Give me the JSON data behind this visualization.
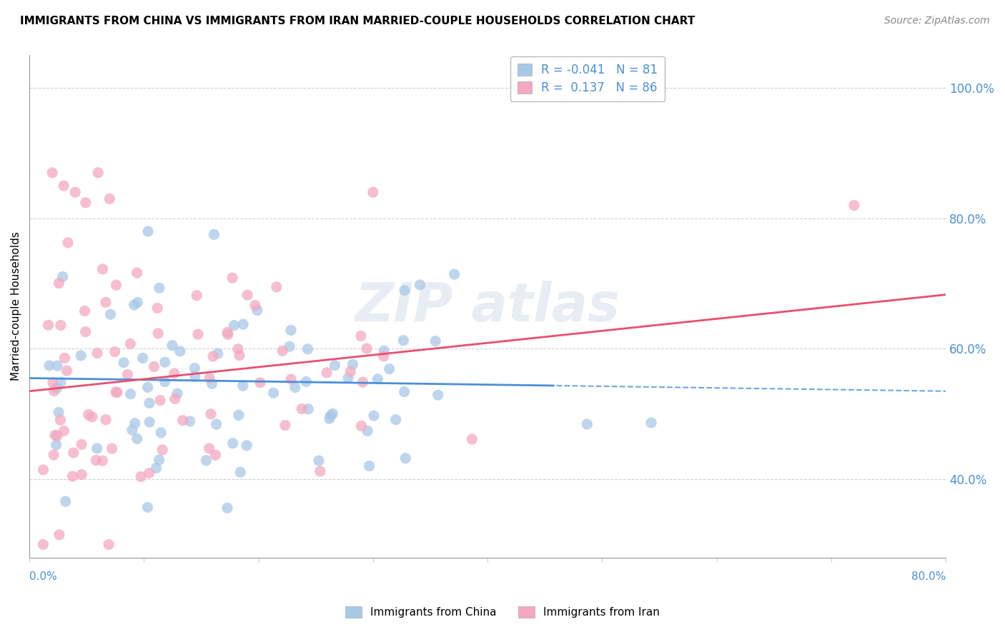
{
  "title": "IMMIGRANTS FROM CHINA VS IMMIGRANTS FROM IRAN MARRIED-COUPLE HOUSEHOLDS CORRELATION CHART",
  "source": "Source: ZipAtlas.com",
  "ylabel": "Married-couple Households",
  "legend_china": "Immigrants from China",
  "legend_iran": "Immigrants from Iran",
  "R_china": -0.041,
  "N_china": 81,
  "R_iran": 0.137,
  "N_iran": 86,
  "color_china": "#a8c8e8",
  "color_iran": "#f4a8c0",
  "line_color_china": "#4a90d9",
  "line_color_iran": "#e85070",
  "tick_color": "#4a90d9",
  "grid_color": "#cccccc",
  "xlim": [
    0.0,
    0.8
  ],
  "ylim": [
    0.28,
    1.05
  ],
  "yticks": [
    0.4,
    0.6,
    0.8,
    1.0
  ],
  "ytick_labels": [
    "40.0%",
    "60.0%",
    "80.0%",
    "100.0%"
  ],
  "xticks": [
    0.0,
    0.1,
    0.2,
    0.3,
    0.4,
    0.5,
    0.6,
    0.7,
    0.8
  ],
  "china_line_y0": 0.555,
  "china_line_slope": -0.025,
  "iran_line_y0": 0.535,
  "iran_line_slope": 0.185
}
